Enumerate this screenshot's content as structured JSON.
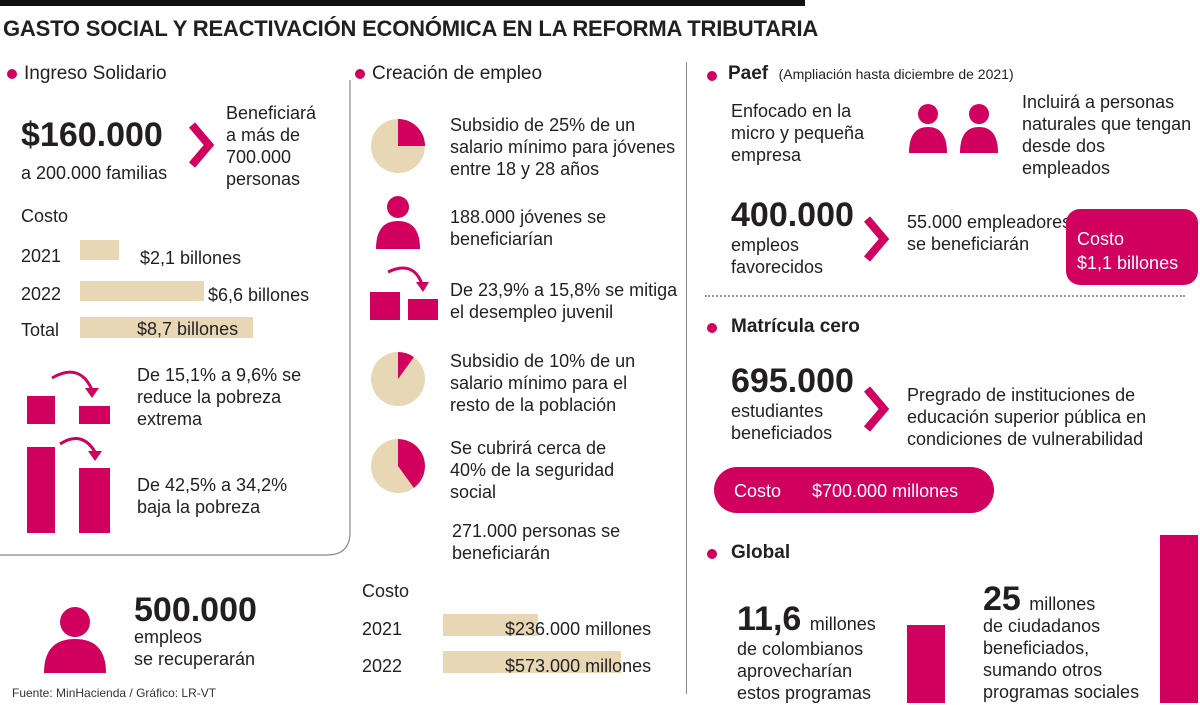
{
  "title": "GASTO SOCIAL Y REACTIVACIÓN ECONÓMICA EN LA REFORMA TRIBUTARIA",
  "colors": {
    "accent": "#d1005f",
    "sand": "#e7d7b4",
    "text": "#231f20"
  },
  "ingreso": {
    "heading": "Ingreso Solidario",
    "amount": "$160.000",
    "families": "a 200.000 familias",
    "benef_line1": "Beneficiará",
    "benef_line2": "a más de",
    "benef_line3": "700.000",
    "benef_line4": "personas",
    "costo_label": "Costo",
    "costs": [
      {
        "label": "2021",
        "value": "$2,1 billones",
        "amount": 2.1
      },
      {
        "label": "2022",
        "value": "$6,6 billones",
        "amount": 6.6
      },
      {
        "label": "Total",
        "value": "$8,7 billones",
        "amount": 8.7
      }
    ],
    "pobreza_ext": "De 15,1% a 9,6% se reduce la pobreza extrema",
    "pobreza": "De 42,5% a 34,2% baja la pobreza"
  },
  "empleos": {
    "number": "500.000",
    "line1": "empleos",
    "line2": "se recuperarán"
  },
  "source": "Fuente: MinHacienda / Gráfico: LR-VT",
  "creacion": {
    "heading": "Creación de empleo",
    "subsidio25": "Subsidio de 25% de un salario mínimo para jóvenes entre 18 y 28 años",
    "subsidio25_pct": 25,
    "jovenes": "188.000 jóvenes se beneficiarían",
    "desempleo": "De 23,9% a 15,8% se mitiga el desempleo juvenil",
    "subsidio10": "Subsidio de 10% de un salario mínimo para el resto de la población",
    "subsidio10_pct": 10,
    "seguridad": "Se cubrirá cerca de 40% de la seguridad social",
    "seguridad_pct": 40,
    "personas": "271.000 personas se beneficiarán",
    "costo_label": "Costo",
    "costs": [
      {
        "label": "2021",
        "value": "$236.000 millones",
        "amount": 236000
      },
      {
        "label": "2022",
        "value": "$573.000 millones",
        "amount": 573000
      }
    ]
  },
  "paef": {
    "heading": "Paef",
    "note": "(Ampliación hasta diciembre de 2021)",
    "enfocado": "Enfocado en la micro y pequeña empresa",
    "incluira": "Incluirá a personas naturales que tengan desde dos empleados",
    "number": "400.000",
    "line1": "empleos",
    "line2": "favorecidos",
    "empleadores": "55.000 empleadores se beneficiarán",
    "cost_label": "Costo",
    "cost_value": "$1,1 billones"
  },
  "matricula": {
    "heading": "Matrícula cero",
    "number": "695.000",
    "line1": "estudiantes",
    "line2": "beneficiados",
    "desc_line1": "Pregrado de instituciones de",
    "desc_line2": "educación superior pública en",
    "desc_line3": "condiciones de vulnerabilidad",
    "cost_label": "Costo",
    "cost_value": "$700.000 millones"
  },
  "global": {
    "heading": "Global",
    "a_number": "11,6",
    "a_unit": "millones",
    "a_line1": "de colombianos",
    "a_line2": "aprovecharían",
    "a_line3": "estos programas",
    "a_value": 11.6,
    "b_number": "25",
    "b_unit": "millones",
    "b_line1": "de ciudadanos",
    "b_line2": "beneficiados,",
    "b_line3": "sumando otros",
    "b_line4": "programas sociales",
    "b_value": 25
  }
}
